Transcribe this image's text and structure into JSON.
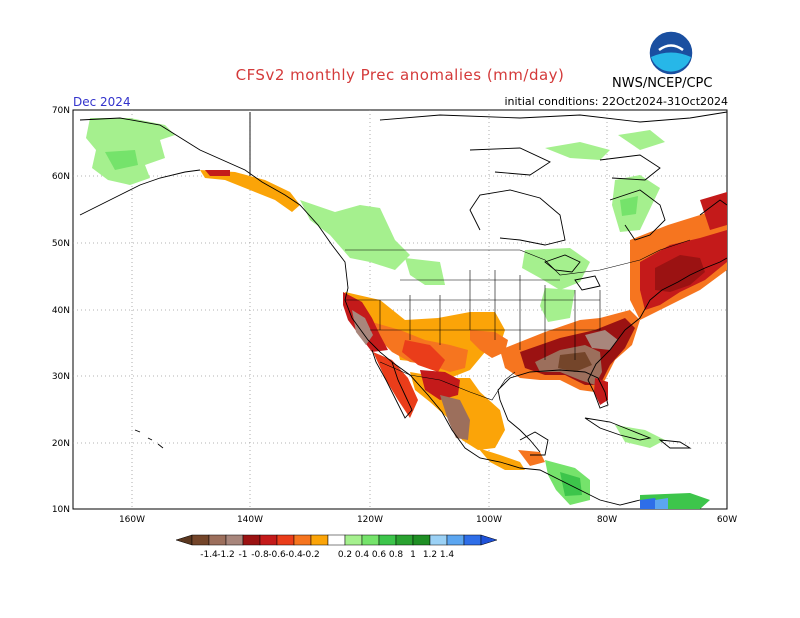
{
  "header": {
    "title": "CFSv2 monthly Prec anomalies (mm/day)",
    "agency": "NWS/NCEP/CPC",
    "valid_month": "Dec 2024",
    "initial_conditions": "initial conditions: 22Oct2024-31Oct2024"
  },
  "map": {
    "lat_labels": [
      "70N",
      "60N",
      "50N",
      "40N",
      "30N",
      "20N",
      "10N"
    ],
    "lon_labels": [
      "160W",
      "140W",
      "120W",
      "100W",
      "80W",
      "60W"
    ],
    "land_color": "#ffffff",
    "coast_color": "#000000",
    "grid_color": "#9a9a9a"
  },
  "colorbar": {
    "tick_labels": [
      "-1.4",
      "-1.2",
      "-1",
      "-0.8",
      "-0.6",
      "-0.4",
      "-0.2",
      "0.2",
      "0.4",
      "0.6",
      "0.8",
      "1",
      "1.2",
      "1.4"
    ],
    "colors": [
      "#74452a",
      "#9c6f5c",
      "#a8867c",
      "#9b1212",
      "#c41a1a",
      "#ea3d1a",
      "#f6751f",
      "#fba408",
      "#ffffff",
      "#a5f08e",
      "#75e36b",
      "#3dc54b",
      "#2aa230",
      "#1f8f24",
      "#9bd1f5",
      "#5ca6f0",
      "#2e6ee8"
    ],
    "under_color": "#5a3720",
    "over_color": "#1f52d8"
  },
  "anomaly_regions": [
    {
      "name": "california-coast",
      "color": "#c41a1a",
      "level": -0.8
    },
    {
      "name": "california-brown",
      "color": "#a8867c",
      "level": -1.2
    },
    {
      "name": "southwest-orange",
      "color": "#f6751f",
      "level": -0.4
    },
    {
      "name": "texas-plains",
      "color": "#fba408",
      "level": -0.2
    },
    {
      "name": "mexico-west",
      "color": "#ea3d1a",
      "level": -0.6
    },
    {
      "name": "mexico-brown",
      "color": "#9c6f5c",
      "level": -1.2
    },
    {
      "name": "gulf-southeast",
      "color": "#9b1212",
      "level": -0.8
    },
    {
      "name": "southeast-brown",
      "color": "#9c6f5c",
      "level": -1.2
    },
    {
      "name": "northeast-red",
      "color": "#c41a1a",
      "level": -0.8
    },
    {
      "name": "alaska-green",
      "color": "#a5f08e",
      "level": 0.4
    },
    {
      "name": "canada-green",
      "color": "#a5f08e",
      "level": 0.4
    },
    {
      "name": "caribbean-green",
      "color": "#3dc54b",
      "level": 0.6
    },
    {
      "name": "colombia-blue",
      "color": "#2e6ee8",
      "level": 1.4
    }
  ]
}
